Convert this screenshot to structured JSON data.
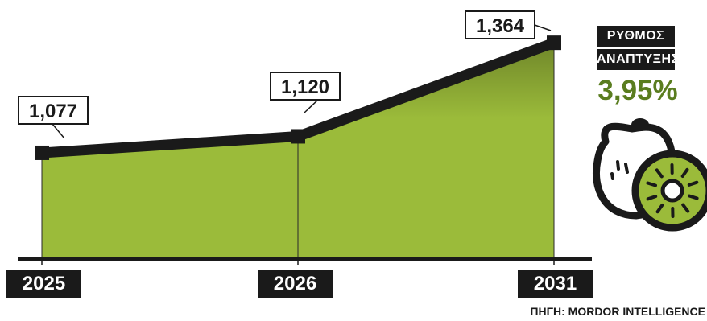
{
  "chart_data": {
    "type": "area",
    "categories": [
      "2025",
      "2026",
      "2031"
    ],
    "values": [
      1077,
      1120,
      1364
    ],
    "value_labels": [
      "1,077",
      "1,120",
      "1,364"
    ],
    "ylim": [
      800,
      1400
    ],
    "fill_color": "#9bbb3a",
    "line_color": "#1a1a1a"
  },
  "growth": {
    "label_line1": "ΡΥΘΜΟΣ",
    "label_line2": "ΑΝΑΠΤΥΞΗΣ",
    "value": "3,95%",
    "value_color": "#5a7d1f"
  },
  "illustration": {
    "icon": "kiwi-icon"
  },
  "source": "ΠΗΓΗ: MORDOR INTELLIGENCE"
}
